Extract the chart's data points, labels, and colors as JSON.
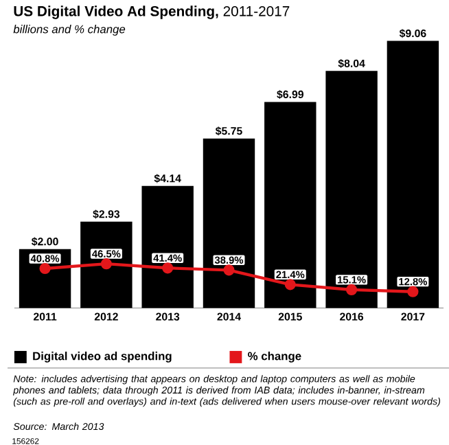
{
  "chart_data": {
    "type": "bar",
    "title": "**US Digital Video Ad Spending,** 2011-2017",
    "subtitle": "billions and % change",
    "categories": [
      "2011",
      "2012",
      "2013",
      "2014",
      "2015",
      "2016",
      "2017"
    ],
    "series": [
      {
        "name": "Digital video ad spending",
        "color": "#000000",
        "values": [
          2.0,
          2.93,
          4.14,
          5.75,
          6.99,
          8.04,
          9.06
        ],
        "value_labels": [
          "$2.00",
          "$2.93",
          "$4.14",
          "$5.75",
          "$6.99",
          "$8.04",
          "$9.06"
        ]
      },
      {
        "name": "% change",
        "type": "line",
        "axis": "y2",
        "color": "#e3171b",
        "values": [
          40.8,
          46.5,
          41.4,
          38.9,
          21.4,
          15.1,
          12.8
        ],
        "value_labels": [
          "40.8%",
          "46.5%",
          "41.4%",
          "38.9%",
          "21.4%",
          "15.1%",
          "12.8%"
        ]
      }
    ],
    "marker": "circle",
    "legend": "bottom",
    "annotations": [
      "Note: includes advertising that appears on desktop and laptop computers as well as mobile phones and tablets; data through 2011 is derived from IAB data; includes in-banner, in-stream (such as pre-roll and overlays) and in-text (ads delivered when users mouse-over relevant words)",
      "Source: March 2013",
      "156262"
    ]
  }
}
